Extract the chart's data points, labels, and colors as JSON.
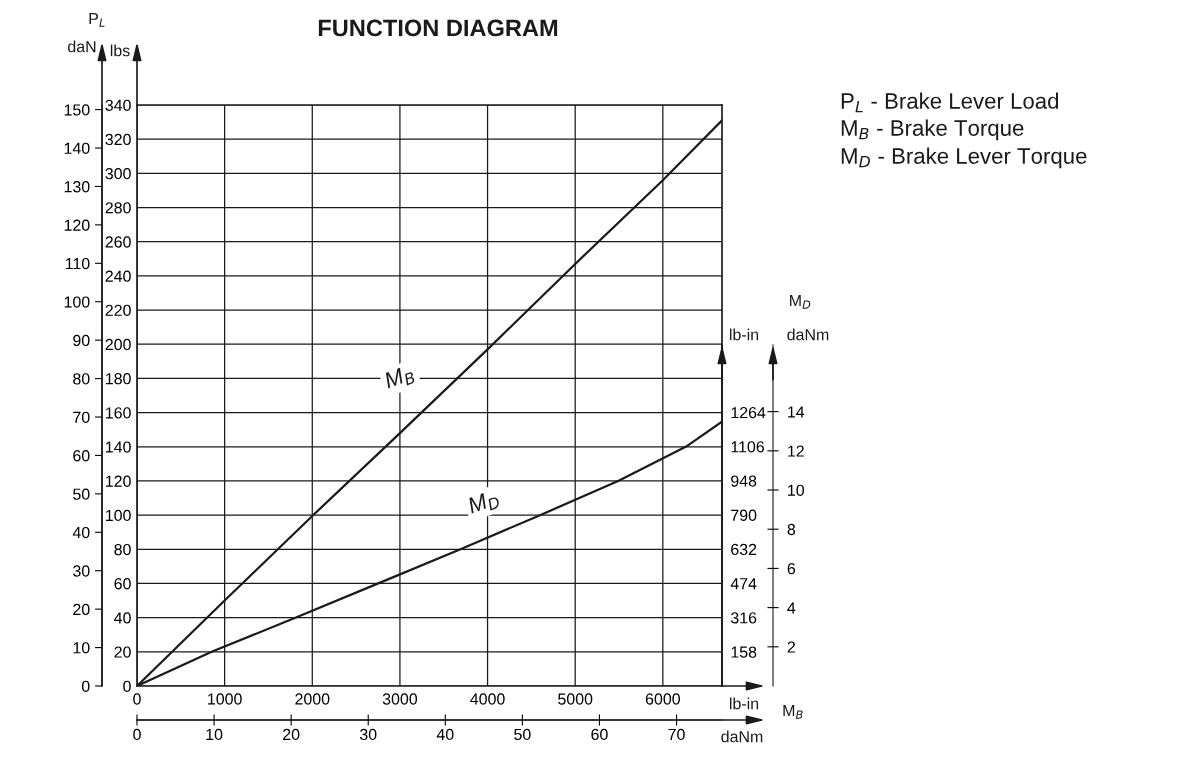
{
  "chart_data": [
    {
      "type": "line",
      "title": "FUNCTION DIAGRAM",
      "xlabel": "lb-in",
      "ylabel": "lbs",
      "y2label": "daN",
      "x2label": "daNm",
      "xlim": [
        0,
        6675
      ],
      "xticks": [
        0,
        1000,
        2000,
        3000,
        4000,
        5000,
        6000
      ],
      "ylim": [
        0,
        340
      ],
      "yticks": [
        0,
        20,
        40,
        60,
        80,
        100,
        120,
        140,
        160,
        180,
        200,
        220,
        240,
        260,
        280,
        300,
        320,
        340
      ],
      "y2lim": [
        0,
        151.2
      ],
      "y2ticks": [
        0,
        10,
        20,
        30,
        40,
        50,
        60,
        70,
        80,
        90,
        100,
        110,
        120,
        130,
        140,
        150
      ],
      "x2lim": [
        0,
        75.9
      ],
      "x2ticks": [
        0,
        10,
        20,
        30,
        40,
        50,
        60,
        70
      ],
      "grid": true,
      "series": [
        {
          "color": "#1a1a1a",
          "x": [
            0,
            1000,
            2000,
            3000,
            4000,
            5000,
            6000,
            6675
          ],
          "values": [
            0,
            50,
            99.5,
            148,
            197,
            247,
            296,
            331
          ]
        }
      ],
      "annotations": [
        "P$_{L}$",
        "M$_{B}$",
        "P$_{L}$ - Brake Lever Load",
        "M$_{B}$ - Brake Torque",
        "M$_{D}$ - Brake Lever Torque",
        "M$_{B}$"
      ]
    },
    {
      "type": "line",
      "ylabel": "lb-in",
      "y2label": "daNm",
      "tick_labels": "y",
      "xlim": [
        0,
        6675
      ],
      "ylim": [
        0,
        1575
      ],
      "yticks": [
        158,
        316,
        474,
        632,
        790,
        948,
        1106,
        1264
      ],
      "y2lim": [
        0,
        17.4
      ],
      "y2ticks": [
        2,
        4,
        6,
        8,
        10,
        12,
        14
      ],
      "series": [
        {
          "color": "#1a1a1a",
          "x": [
            0,
            852,
            1814,
            2753,
            3691,
            4605,
            5496,
            6266,
            6675
          ],
          "values": [
            0,
            158,
            316,
            474,
            632,
            790,
            948,
            1106,
            1221
          ]
        }
      ],
      "annotations": [
        "M$_{D}$",
        "M$_{D}$"
      ]
    }
  ]
}
